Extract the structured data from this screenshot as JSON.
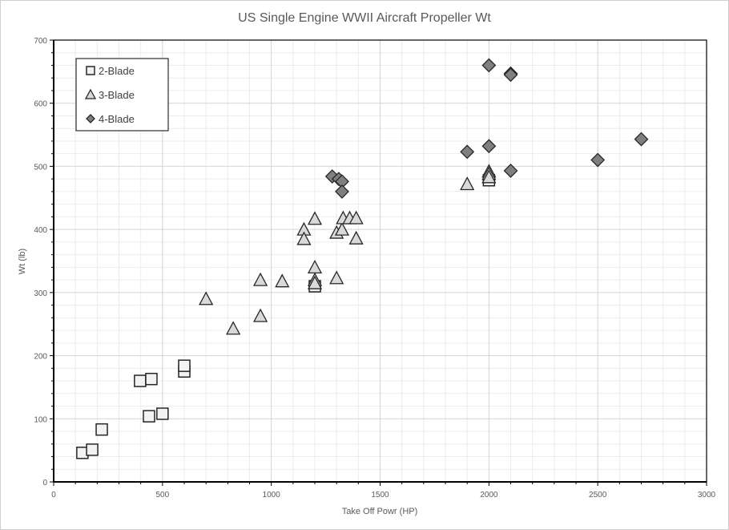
{
  "chart_data": {
    "type": "scatter",
    "title": "US Single Engine WWII Aircraft Propeller Wt",
    "xlabel": "Take Off Powr (HP)",
    "ylabel": "Wt (lb)",
    "xlim": [
      0,
      3000
    ],
    "ylim": [
      0,
      700
    ],
    "xticks": [
      0,
      500,
      1000,
      1500,
      2000,
      2500,
      3000
    ],
    "yticks": [
      0,
      100,
      200,
      300,
      400,
      500,
      600,
      700
    ],
    "grid": true,
    "legend_position": "top-left",
    "series": [
      {
        "name": "2-Blade",
        "marker": "square",
        "color": "#f2f2f2",
        "points": [
          [
            132,
            46
          ],
          [
            177,
            51
          ],
          [
            221,
            83
          ],
          [
            397,
            160
          ],
          [
            449,
            163
          ],
          [
            438,
            104
          ],
          [
            500,
            108
          ],
          [
            600,
            175
          ],
          [
            600,
            184
          ],
          [
            1200,
            310
          ],
          [
            2000,
            478
          ]
        ]
      },
      {
        "name": "3-Blade",
        "marker": "triangle",
        "color": "#d9d9d9",
        "points": [
          [
            700,
            290
          ],
          [
            825,
            243
          ],
          [
            950,
            320
          ],
          [
            950,
            263
          ],
          [
            1050,
            318
          ],
          [
            1150,
            400
          ],
          [
            1150,
            385
          ],
          [
            1200,
            417
          ],
          [
            1200,
            340
          ],
          [
            1200,
            320
          ],
          [
            1200,
            315
          ],
          [
            1300,
            395
          ],
          [
            1300,
            323
          ],
          [
            1325,
            400
          ],
          [
            1330,
            418
          ],
          [
            1360,
            418
          ],
          [
            1390,
            418
          ],
          [
            1390,
            386
          ],
          [
            1900,
            472
          ],
          [
            2000,
            492
          ],
          [
            2000,
            488
          ],
          [
            2000,
            483
          ]
        ]
      },
      {
        "name": "4-Blade",
        "marker": "diamond",
        "color": "#7f7f7f",
        "points": [
          [
            1280,
            484
          ],
          [
            1310,
            480
          ],
          [
            1325,
            476
          ],
          [
            1325,
            460
          ],
          [
            1900,
            523
          ],
          [
            2000,
            660
          ],
          [
            2000,
            532
          ],
          [
            2100,
            647
          ],
          [
            2100,
            645
          ],
          [
            2100,
            493
          ],
          [
            2500,
            510
          ],
          [
            2700,
            543
          ]
        ]
      }
    ]
  }
}
